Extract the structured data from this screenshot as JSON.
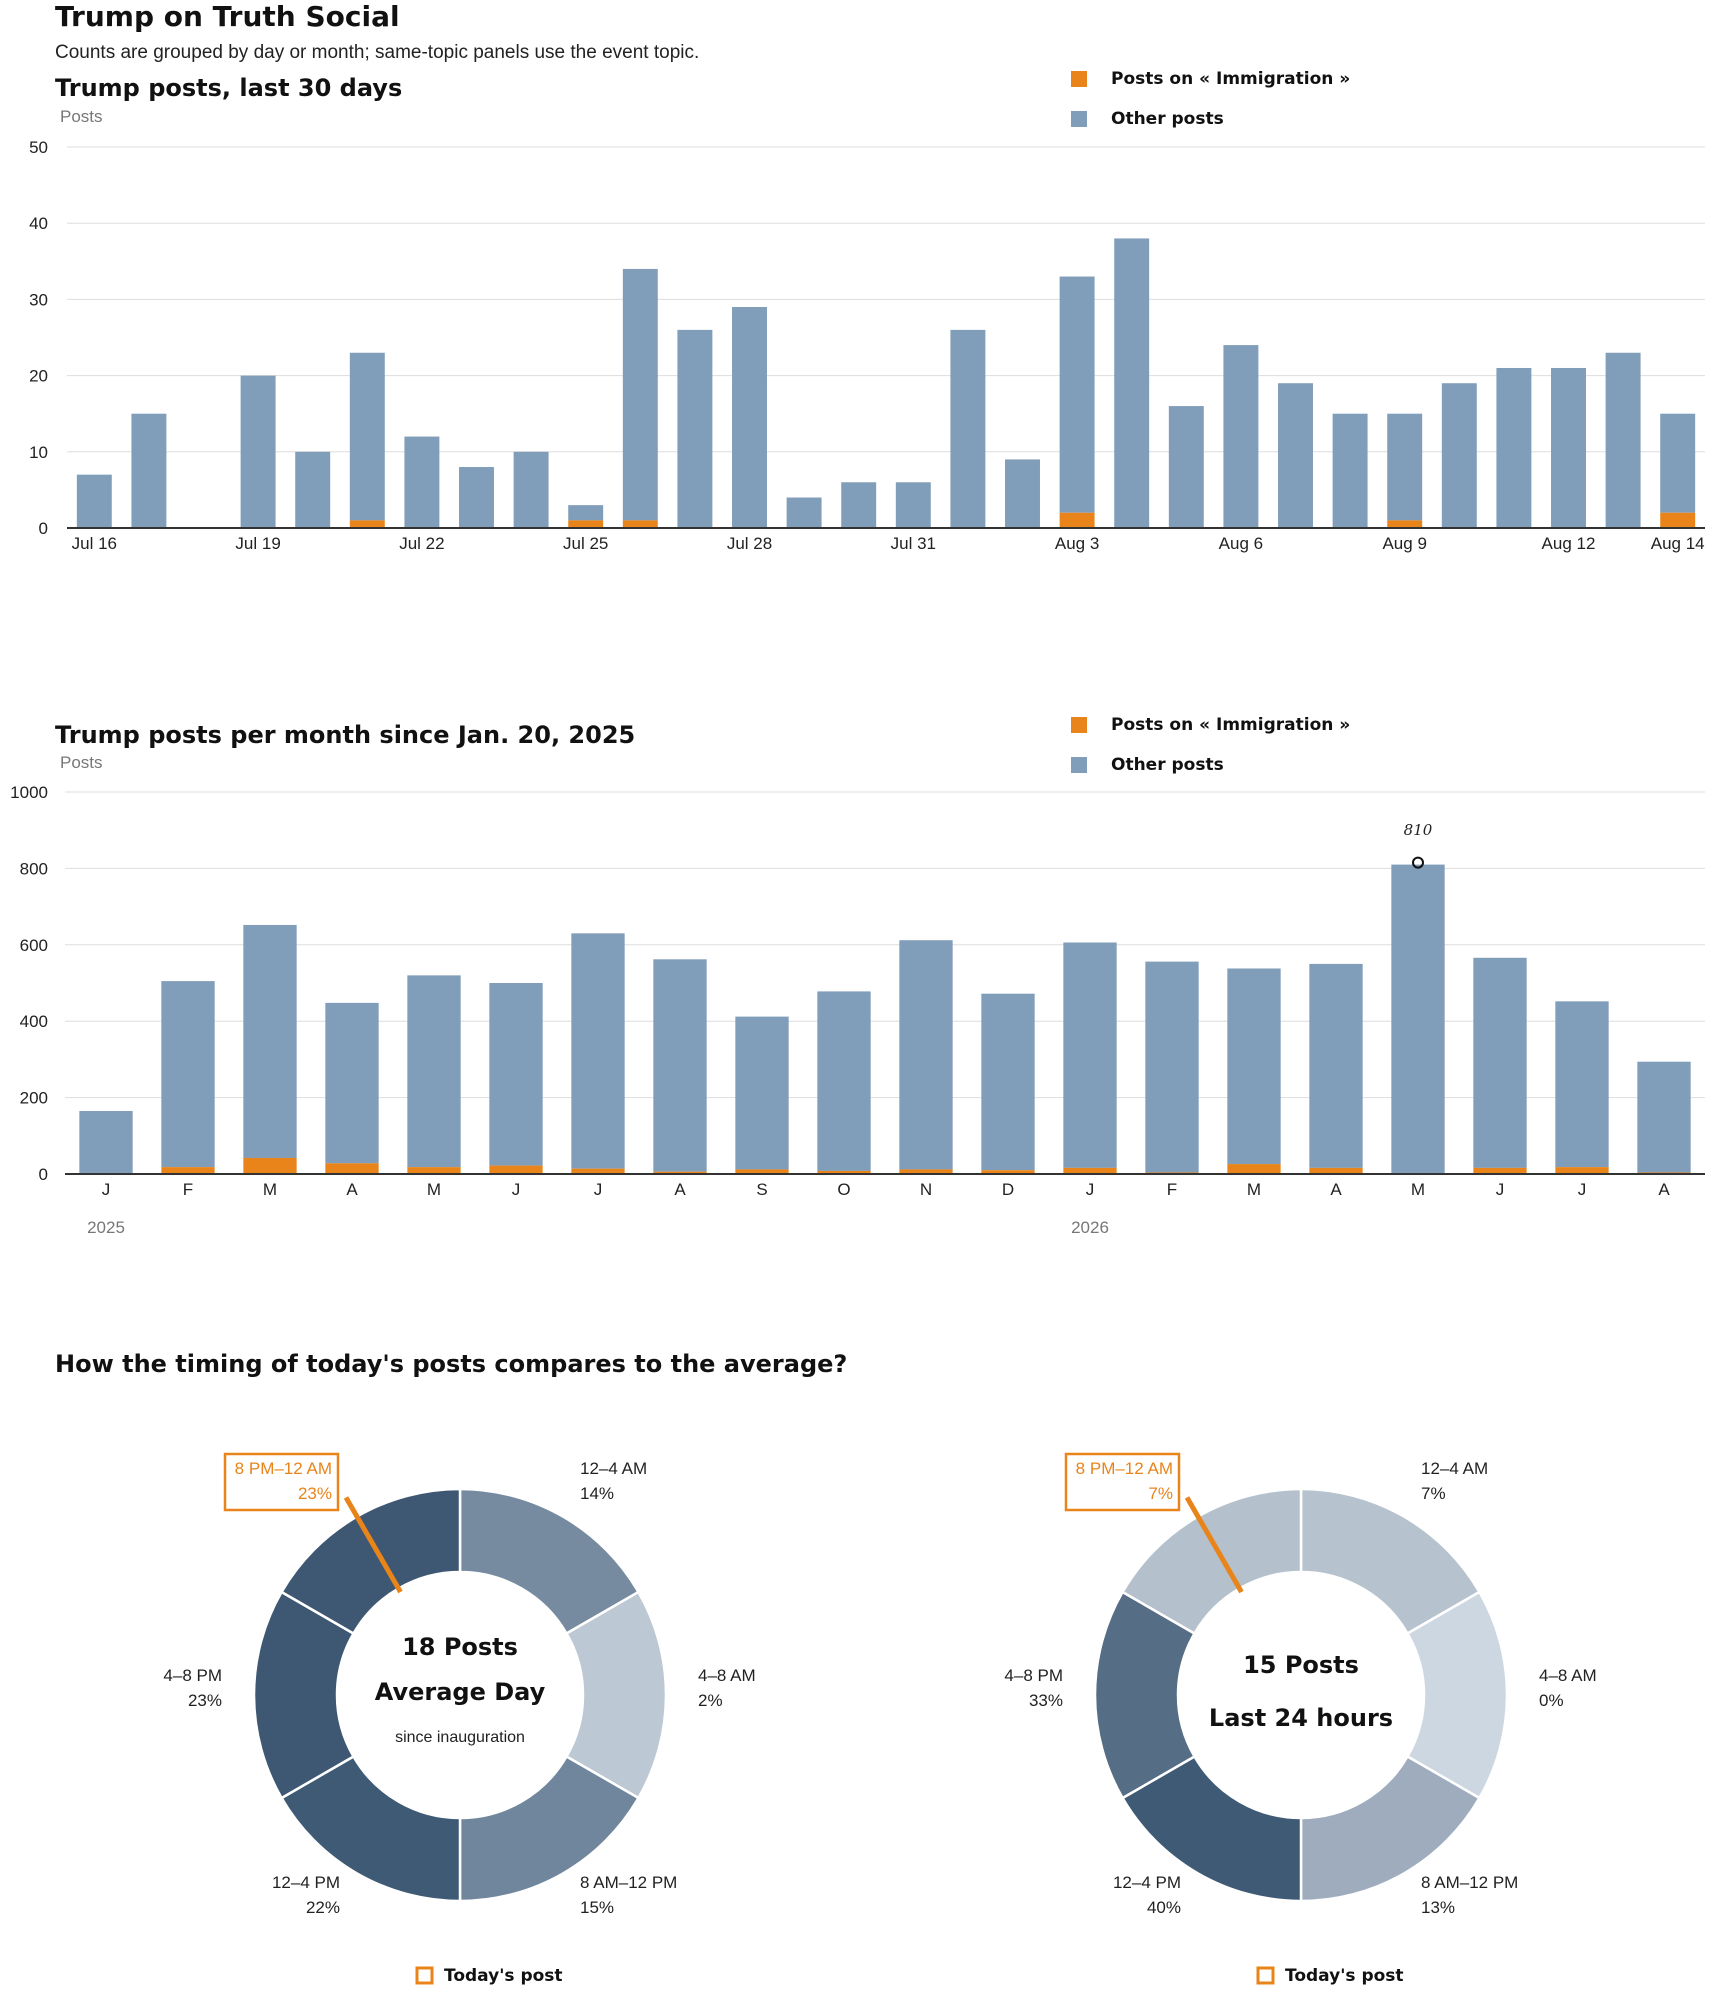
{
  "page": {
    "title": "Trump on Truth Social",
    "subtitle": "Counts are grouped by day or month; same-topic panels use the event topic."
  },
  "legend": {
    "topic_label": "Posts on « Immigration »",
    "other_label": "Other posts"
  },
  "colors": {
    "topic": "#e8841a",
    "other": "#809db9",
    "highlight": "#e8841a"
  },
  "chart_data": [
    {
      "type": "bar",
      "stacked": true,
      "title": "Trump posts, last 30 days",
      "ylabel": "Posts",
      "ylim": [
        0,
        50
      ],
      "yticks": [
        0,
        10,
        20,
        30,
        40,
        50
      ],
      "grid": true,
      "legend_position": "top-right",
      "categories": [
        "Jul 16",
        "Jul 17",
        "Jul 18",
        "Jul 19",
        "Jul 20",
        "Jul 21",
        "Jul 22",
        "Jul 23",
        "Jul 24",
        "Jul 25",
        "Jul 26",
        "Jul 27",
        "Jul 28",
        "Jul 29",
        "Jul 30",
        "Jul 31",
        "Aug 1",
        "Aug 2",
        "Aug 3",
        "Aug 4",
        "Aug 5",
        "Aug 6",
        "Aug 7",
        "Aug 8",
        "Aug 9",
        "Aug 10",
        "Aug 11",
        "Aug 12",
        "Aug 13",
        "Aug 14"
      ],
      "xtick_labels": [
        "Jul 16",
        "Jul 19",
        "Jul 22",
        "Jul 25",
        "Jul 28",
        "Jul 31",
        "Aug 3",
        "Aug 6",
        "Aug 9",
        "Aug 12",
        "Aug 14"
      ],
      "series": [
        {
          "name": "Posts on « Immigration »",
          "values": [
            0,
            0,
            0,
            0,
            0,
            1,
            0,
            0,
            0,
            1,
            1,
            0,
            0,
            0,
            0,
            0,
            0,
            0,
            2,
            0,
            0,
            0,
            0,
            0,
            1,
            0,
            0,
            0,
            0,
            2
          ]
        },
        {
          "name": "Other posts",
          "values": [
            7,
            15,
            0,
            20,
            10,
            22,
            12,
            8,
            10,
            2,
            33,
            26,
            29,
            4,
            6,
            6,
            26,
            9,
            31,
            38,
            16,
            24,
            19,
            15,
            14,
            19,
            21,
            21,
            23,
            13
          ]
        }
      ]
    },
    {
      "type": "bar",
      "stacked": true,
      "title": "Trump posts per month since Jan. 20, 2025",
      "ylabel": "Posts",
      "ylim": [
        0,
        1000
      ],
      "yticks": [
        0,
        200,
        400,
        600,
        800,
        1000
      ],
      "grid": true,
      "legend_position": "top-right",
      "categories": [
        "J",
        "F",
        "M",
        "A",
        "M",
        "J",
        "J",
        "A",
        "S",
        "O",
        "N",
        "D",
        "J",
        "F",
        "M",
        "A",
        "M",
        "J",
        "J",
        "A"
      ],
      "year_labels": [
        {
          "year": "2025",
          "index": 0
        },
        {
          "year": "2026",
          "index": 12
        }
      ],
      "annotation": {
        "index": 16,
        "label": "810"
      },
      "series": [
        {
          "name": "Posts on « Immigration »",
          "values": [
            0,
            18,
            42,
            28,
            18,
            22,
            14,
            6,
            12,
            8,
            12,
            10,
            16,
            4,
            26,
            16,
            0,
            16,
            18,
            4
          ]
        },
        {
          "name": "Other posts",
          "values": [
            165,
            487,
            610,
            420,
            502,
            478,
            616,
            556,
            400,
            470,
            600,
            462,
            590,
            552,
            512,
            534,
            810,
            550,
            434,
            290
          ]
        }
      ]
    },
    {
      "type": "pie",
      "donut": true,
      "section_title": "How the timing of today's posts compares to the average?",
      "center_lines": [
        "18 Posts",
        "Average Day"
      ],
      "center_note": "since inauguration",
      "categories": [
        "12–4 AM",
        "4–8 AM",
        "8 AM–12 PM",
        "12–4 PM",
        "4–8 PM",
        "8 PM–12 AM"
      ],
      "values": [
        14,
        2,
        15,
        22,
        23,
        23
      ],
      "value_labels": [
        "14%",
        "2%",
        "15%",
        "22%",
        "23%",
        "23%"
      ],
      "highlight_index": 5,
      "legend_label": "Today's post"
    },
    {
      "type": "pie",
      "donut": true,
      "center_lines": [
        "15 Posts",
        "Last 24 hours"
      ],
      "categories": [
        "12–4 AM",
        "4–8 AM",
        "8 AM–12 PM",
        "12–4 PM",
        "4–8 PM",
        "8 PM–12 AM"
      ],
      "values": [
        7,
        0,
        13,
        40,
        33,
        7
      ],
      "value_labels": [
        "7%",
        "0%",
        "13%",
        "40%",
        "33%",
        "7%"
      ],
      "highlight_index": 5,
      "legend_label": "Today's post"
    }
  ]
}
